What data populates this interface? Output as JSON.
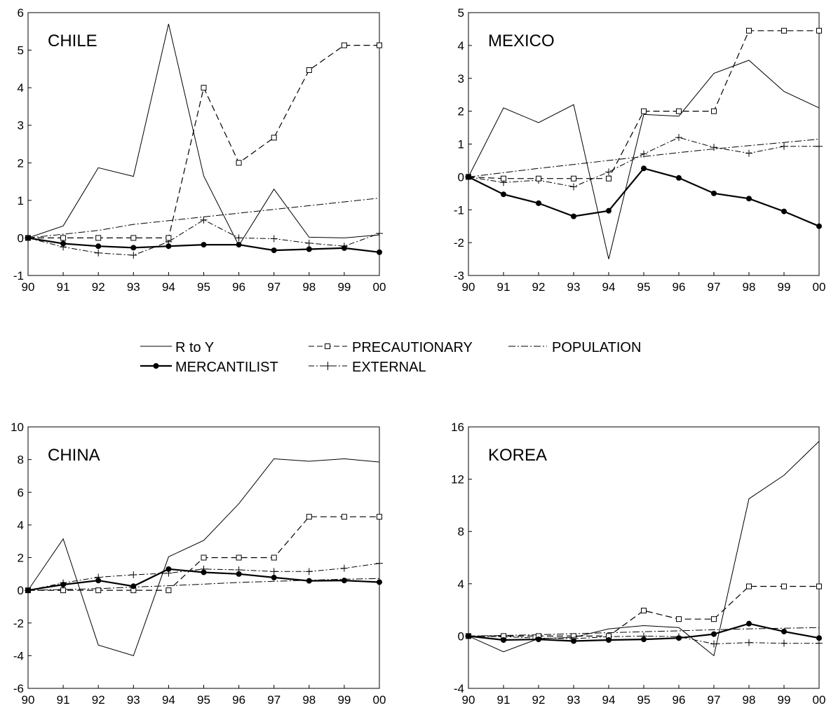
{
  "chart_data": [
    {
      "type": "line",
      "title": "CHILE",
      "x": [
        "90",
        "91",
        "92",
        "93",
        "94",
        "95",
        "96",
        "97",
        "98",
        "99",
        "00"
      ],
      "ylim": [
        -1,
        6
      ],
      "yticks": [
        -1,
        0,
        1,
        2,
        3,
        4,
        5,
        6
      ],
      "series": [
        {
          "name": "R to Y",
          "values": [
            0,
            0.32,
            1.87,
            1.64,
            5.7,
            1.65,
            -0.2,
            1.3,
            0.02,
            0.0,
            0.08
          ]
        },
        {
          "name": "PRECAUTIONARY",
          "values": [
            0,
            0,
            0,
            0,
            0,
            4.0,
            2.0,
            2.67,
            4.47,
            5.13,
            5.13
          ]
        },
        {
          "name": "POPULATION",
          "values": [
            0,
            0.1,
            0.2,
            0.36,
            0.46,
            0.56,
            0.66,
            0.76,
            0.86,
            0.96,
            1.06
          ]
        },
        {
          "name": "MERCANTILIST",
          "values": [
            0,
            -0.15,
            -0.22,
            -0.26,
            -0.22,
            -0.18,
            -0.18,
            -0.33,
            -0.3,
            -0.27,
            -0.38
          ]
        },
        {
          "name": "EXTERNAL",
          "values": [
            0,
            -0.24,
            -0.4,
            -0.46,
            -0.1,
            0.48,
            0.0,
            -0.02,
            -0.14,
            -0.22,
            0.12
          ]
        }
      ]
    },
    {
      "type": "line",
      "title": "MEXICO",
      "x": [
        "90",
        "91",
        "92",
        "93",
        "94",
        "95",
        "96",
        "97",
        "98",
        "99",
        "00"
      ],
      "ylim": [
        -3,
        5
      ],
      "yticks": [
        -3,
        -2,
        -1,
        0,
        1,
        2,
        3,
        4,
        5
      ],
      "series": [
        {
          "name": "R to Y",
          "values": [
            0,
            2.1,
            1.65,
            2.2,
            -2.5,
            1.9,
            1.85,
            3.15,
            3.55,
            2.6,
            2.1
          ]
        },
        {
          "name": "PRECAUTIONARY",
          "values": [
            0,
            -0.05,
            -0.05,
            -0.05,
            -0.05,
            2.0,
            2.0,
            2.0,
            4.45,
            4.45,
            4.45
          ]
        },
        {
          "name": "POPULATION",
          "values": [
            0,
            0.13,
            0.26,
            0.38,
            0.5,
            0.62,
            0.74,
            0.85,
            0.95,
            1.05,
            1.15
          ]
        },
        {
          "name": "MERCANTILIST",
          "values": [
            0,
            -0.53,
            -0.8,
            -1.2,
            -1.03,
            0.26,
            -0.03,
            -0.5,
            -0.66,
            -1.05,
            -1.5
          ]
        },
        {
          "name": "EXTERNAL",
          "values": [
            0,
            -0.17,
            -0.1,
            -0.3,
            0.15,
            0.7,
            1.2,
            0.9,
            0.72,
            0.93,
            0.93
          ]
        }
      ]
    },
    {
      "type": "line",
      "title": "CHINA",
      "x": [
        "90",
        "91",
        "92",
        "93",
        "94",
        "95",
        "96",
        "97",
        "98",
        "99",
        "00"
      ],
      "ylim": [
        -6,
        10
      ],
      "yticks": [
        -6,
        -4,
        -2,
        0,
        2,
        4,
        6,
        8,
        10
      ],
      "series": [
        {
          "name": "R to Y",
          "values": [
            0,
            3.15,
            -3.35,
            -4.0,
            2.05,
            3.05,
            5.3,
            8.05,
            7.9,
            8.05,
            7.85
          ]
        },
        {
          "name": "PRECAUTIONARY",
          "values": [
            0,
            0,
            0,
            0,
            0,
            2.0,
            2.0,
            2.0,
            4.5,
            4.5,
            4.5
          ]
        },
        {
          "name": "POPULATION",
          "values": [
            0,
            0.05,
            0.1,
            0.2,
            0.28,
            0.38,
            0.48,
            0.55,
            0.62,
            0.68,
            0.72
          ]
        },
        {
          "name": "MERCANTILIST",
          "values": [
            0,
            0.35,
            0.6,
            0.25,
            1.3,
            1.1,
            1.0,
            0.78,
            0.58,
            0.6,
            0.5
          ]
        },
        {
          "name": "EXTERNAL",
          "values": [
            0,
            0.45,
            0.8,
            0.95,
            1.05,
            1.3,
            1.25,
            1.15,
            1.15,
            1.35,
            1.65
          ]
        }
      ]
    },
    {
      "type": "line",
      "title": "KOREA",
      "x": [
        "90",
        "91",
        "92",
        "93",
        "94",
        "95",
        "96",
        "97",
        "98",
        "99",
        "00"
      ],
      "ylim": [
        -4,
        16
      ],
      "yticks": [
        -4,
        0,
        4,
        8,
        12,
        16
      ],
      "series": [
        {
          "name": "R to Y",
          "values": [
            0,
            -1.2,
            -0.2,
            -0.1,
            0.55,
            0.8,
            0.65,
            -1.5,
            10.5,
            12.3,
            14.9
          ]
        },
        {
          "name": "PRECAUTIONARY",
          "values": [
            0,
            0,
            0,
            0,
            0,
            1.95,
            1.3,
            1.3,
            3.8,
            3.8,
            3.8
          ]
        },
        {
          "name": "POPULATION",
          "values": [
            0,
            0.05,
            0.1,
            0.18,
            0.26,
            0.33,
            0.4,
            0.48,
            0.55,
            0.6,
            0.65
          ]
        },
        {
          "name": "MERCANTILIST",
          "values": [
            0,
            -0.3,
            -0.25,
            -0.38,
            -0.3,
            -0.25,
            -0.15,
            0.15,
            0.95,
            0.35,
            -0.15
          ]
        },
        {
          "name": "EXTERNAL",
          "values": [
            0,
            -0.05,
            -0.15,
            -0.2,
            -0.05,
            0.0,
            -0.05,
            -0.6,
            -0.5,
            -0.55,
            -0.55
          ]
        }
      ]
    }
  ],
  "legend": [
    {
      "name": "R to Y",
      "style": "thin-solid"
    },
    {
      "name": "PRECAUTIONARY",
      "style": "dashed-square"
    },
    {
      "name": "POPULATION",
      "style": "dash-dot"
    },
    {
      "name": "MERCANTILIST",
      "style": "bold-dot"
    },
    {
      "name": "EXTERNAL",
      "style": "dash-plus"
    }
  ],
  "colors": {
    "line": "#000000",
    "background": "#ffffff"
  }
}
